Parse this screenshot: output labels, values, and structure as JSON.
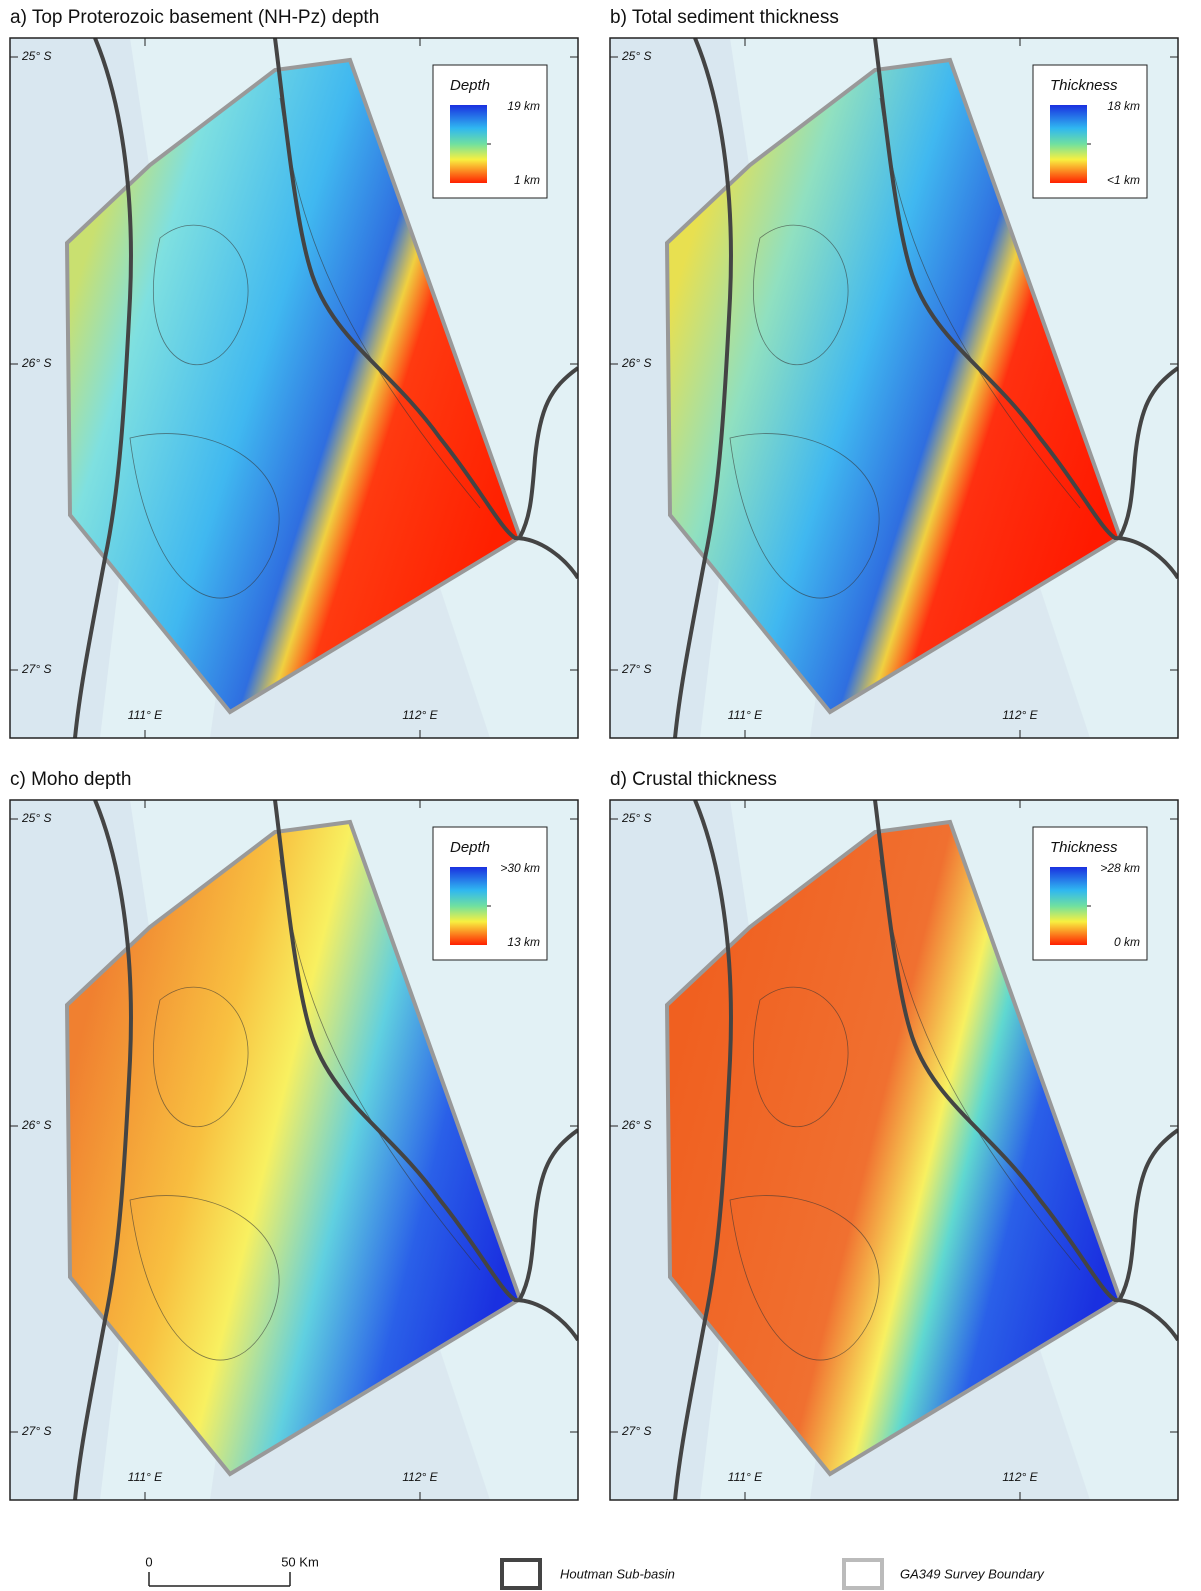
{
  "panels": [
    {
      "title": "a) Top Proterozoic basement (NH-Pz) depth",
      "legend": {
        "title": "Depth",
        "max": "19 km",
        "min": "1 km"
      }
    },
    {
      "title": "b) Total sediment thickness",
      "legend": {
        "title": "Thickness",
        "max": "18 km",
        "min": "<1 km"
      }
    },
    {
      "title": "c) Moho depth",
      "legend": {
        "title": "Depth",
        "max": ">30 km",
        "min": "13 km"
      }
    },
    {
      "title": "d) Crustal thickness",
      "legend": {
        "title": "Thickness",
        "max": ">28 km",
        "min": "0 km"
      }
    }
  ],
  "axes": {
    "lat": [
      "25° S",
      "26° S",
      "27° S"
    ],
    "lon": [
      "111° E",
      "112° E"
    ]
  },
  "footer": {
    "scale": {
      "start": "0",
      "end": "50 Km"
    },
    "legend": [
      "Houtman Sub-basin",
      "GA349 Survey Boundary"
    ]
  }
}
